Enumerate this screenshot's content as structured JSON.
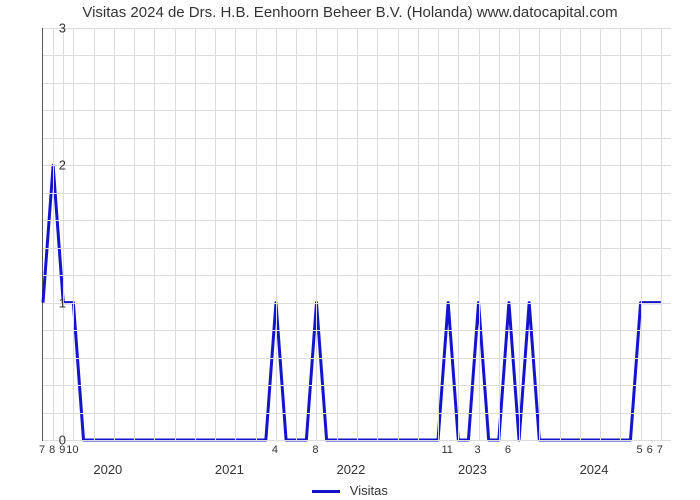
{
  "chart": {
    "type": "line",
    "title": "Visitas 2024 de Drs. H.B. Eenhoorn Beheer B.V. (Holanda) www.datocapital.com",
    "title_fontsize": 15,
    "background_color": "#ffffff",
    "grid_color": "#dcdcdc",
    "axis_color": "#555555",
    "text_color": "#333333",
    "xlim": [
      0,
      62
    ],
    "ylim": [
      0,
      3
    ],
    "ytick_step": 1,
    "y_ticks": [
      0,
      1,
      2,
      3
    ],
    "x_minor_ticks": [
      {
        "pos": 0,
        "label": "7"
      },
      {
        "pos": 1,
        "label": "8"
      },
      {
        "pos": 2,
        "label": "9"
      },
      {
        "pos": 3,
        "label": "10"
      },
      {
        "pos": 23,
        "label": "4"
      },
      {
        "pos": 27,
        "label": "8"
      },
      {
        "pos": 40,
        "label": "11"
      },
      {
        "pos": 43,
        "label": "3"
      },
      {
        "pos": 46,
        "label": "6"
      },
      {
        "pos": 59,
        "label": "5"
      },
      {
        "pos": 60,
        "label": "6"
      },
      {
        "pos": 61,
        "label": "7"
      }
    ],
    "x_major_ticks": [
      {
        "pos": 6.5,
        "label": "2020"
      },
      {
        "pos": 18.5,
        "label": "2021"
      },
      {
        "pos": 30.5,
        "label": "2022"
      },
      {
        "pos": 42.5,
        "label": "2023"
      },
      {
        "pos": 54.5,
        "label": "2024"
      }
    ],
    "grid_v_positions": [
      1,
      2,
      3,
      5,
      7,
      9,
      11,
      13,
      15,
      17,
      19,
      21,
      23,
      25,
      27,
      29,
      31,
      33,
      35,
      37,
      39,
      41,
      43,
      45,
      47,
      49,
      51,
      53,
      55,
      57,
      59,
      61
    ],
    "grid_h_extra": [
      0.2,
      0.4,
      0.6,
      0.8,
      1.2,
      1.4,
      1.6,
      1.8,
      2.2,
      2.4,
      2.6,
      2.8
    ],
    "series": {
      "name": "Visitas",
      "color": "#1414cc",
      "line_width": 3,
      "x": [
        0,
        1,
        2,
        3,
        4,
        5,
        6,
        7,
        8,
        9,
        10,
        11,
        12,
        13,
        14,
        15,
        16,
        17,
        18,
        19,
        20,
        21,
        22,
        23,
        24,
        25,
        26,
        27,
        28,
        29,
        30,
        31,
        32,
        33,
        34,
        35,
        36,
        37,
        38,
        39,
        40,
        41,
        42,
        43,
        44,
        45,
        46,
        47,
        48,
        49,
        50,
        51,
        52,
        53,
        54,
        55,
        56,
        57,
        58,
        59,
        60,
        61
      ],
      "y": [
        1,
        2,
        1,
        1,
        0,
        0,
        0,
        0,
        0,
        0,
        0,
        0,
        0,
        0,
        0,
        0,
        0,
        0,
        0,
        0,
        0,
        0,
        0,
        1,
        0,
        0,
        0,
        1,
        0,
        0,
        0,
        0,
        0,
        0,
        0,
        0,
        0,
        0,
        0,
        0,
        1,
        0,
        0,
        1,
        0,
        0,
        1,
        0,
        1,
        0,
        0,
        0,
        0,
        0,
        0,
        0,
        0,
        0,
        0,
        1,
        1,
        1
      ]
    },
    "legend": {
      "label": "Visitas",
      "fontsize": 13
    }
  }
}
